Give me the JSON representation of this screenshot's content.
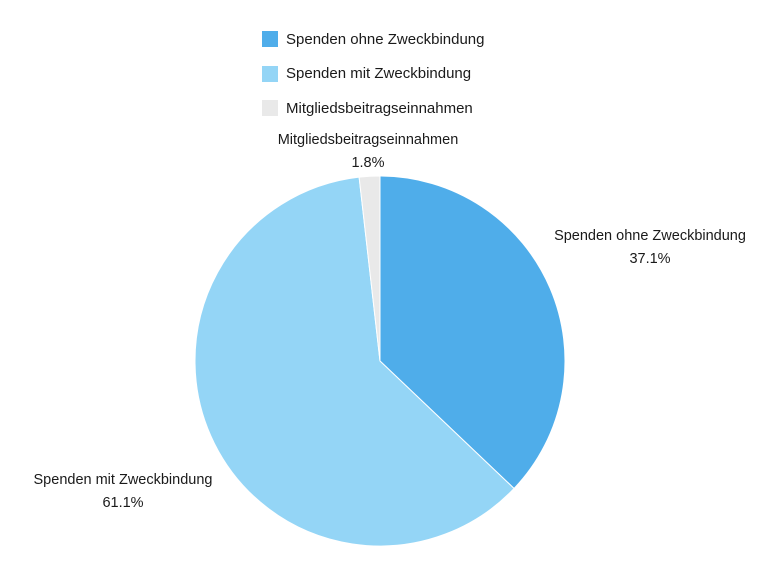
{
  "chart_data": {
    "type": "pie",
    "categories": [
      "Spenden ohne Zweckbindung",
      "Spenden mit Zweckbindung",
      "Mitgliedsbeitragseinnahmen"
    ],
    "values": [
      37.1,
      61.1,
      1.8
    ],
    "value_labels": [
      "37.1%",
      "61.1%",
      "1.8%"
    ],
    "colors": [
      "#4fadea",
      "#94d5f6",
      "#e9e9e9"
    ],
    "legend_position": "top",
    "legend": [
      {
        "label": "Spenden ohne Zweckbindung",
        "color": "#4fadea"
      },
      {
        "label": "Spenden mit Zweckbindung",
        "color": "#94d5f6"
      },
      {
        "label": "Mitgliedsbeitragseinnahmen",
        "color": "#e9e9e9"
      }
    ]
  }
}
